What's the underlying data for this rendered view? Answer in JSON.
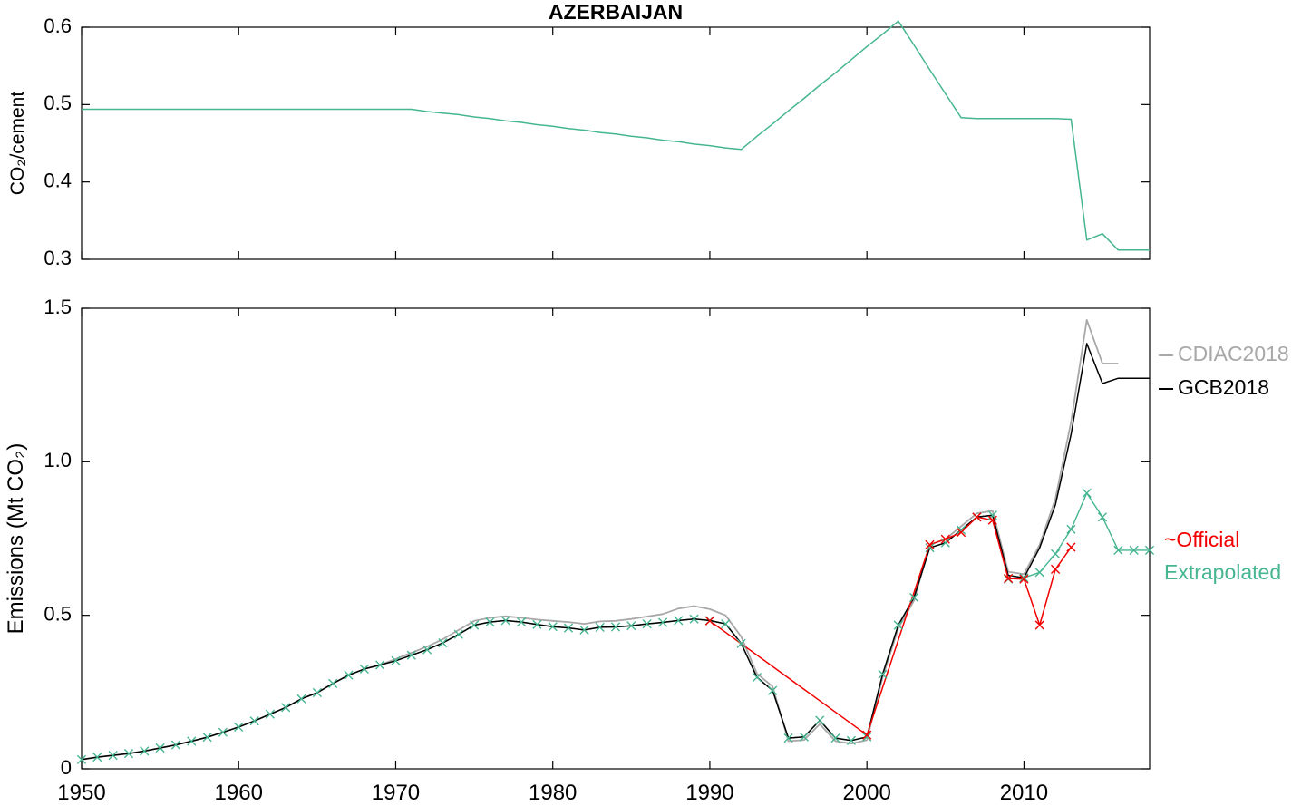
{
  "figure": {
    "title": "AZERBAIJAN"
  },
  "colors": {
    "axis": "#000000",
    "cdiac": "#a8a8a8",
    "gcb": "#000000",
    "official": "#f20000",
    "extrapolated": "#45b592"
  },
  "legend": {
    "cdiac": "CDIAC2018",
    "gcb": "GCB2018",
    "official": "~Official",
    "extrapolated": "Extrapolated"
  },
  "chart_data": [
    {
      "type": "line",
      "title": "AZERBAIJAN",
      "xlabel": "",
      "ylabel": "CO₂/cement",
      "xlim": [
        1950,
        2018
      ],
      "ylim": [
        0.3,
        0.6
      ],
      "xticks": [
        1950,
        1960,
        1970,
        1980,
        1990,
        2000,
        2010
      ],
      "xtick_labels": [
        "",
        "",
        "",
        "",
        "",
        "",
        ""
      ],
      "yticks": [
        0.3,
        0.4,
        0.5,
        0.6
      ],
      "ytick_labels": [
        "0.3",
        "0.4",
        "0.5",
        "0.6"
      ],
      "grid": false,
      "series": [
        {
          "name": "co2-per-cement-ratio",
          "color_key": "extrapolated",
          "marker": "none",
          "width": 1.5,
          "x_start": 1950,
          "values": [
            0.494,
            0.494,
            0.494,
            0.494,
            0.494,
            0.494,
            0.494,
            0.494,
            0.494,
            0.494,
            0.494,
            0.494,
            0.494,
            0.494,
            0.494,
            0.494,
            0.494,
            0.494,
            0.494,
            0.494,
            0.494,
            0.494,
            0.491,
            0.489,
            0.487,
            0.484,
            0.482,
            0.479,
            0.477,
            0.474,
            0.472,
            0.469,
            0.467,
            0.464,
            0.462,
            0.459,
            0.457,
            0.454,
            0.452,
            0.449,
            0.447,
            0.444,
            0.442,
            0.459,
            0.475,
            0.492,
            0.508,
            0.525,
            0.541,
            0.558,
            0.575,
            0.591,
            0.608,
            0.577,
            0.545,
            0.514,
            0.483,
            0.482,
            0.482,
            0.482,
            0.482,
            0.482,
            0.482,
            0.481,
            0.325,
            0.333,
            0.312,
            0.312,
            0.312
          ]
        }
      ]
    },
    {
      "type": "line",
      "title": "",
      "xlabel": "",
      "ylabel": "Emissions (Mt CO₂)",
      "xlim": [
        1950,
        2018
      ],
      "ylim": [
        0,
        1.5
      ],
      "xticks": [
        1950,
        1960,
        1970,
        1980,
        1990,
        2000,
        2010
      ],
      "xtick_labels": [
        "1950",
        "1960",
        "1970",
        "1980",
        "1990",
        "2000",
        "2010"
      ],
      "yticks": [
        0,
        0.5,
        1.0,
        1.5
      ],
      "ytick_labels": [
        "0",
        "0.5",
        "1.0",
        "1.5"
      ],
      "grid": false,
      "legend_position": "right-outside",
      "series": [
        {
          "name": "Extrapolated",
          "color_key": "extrapolated",
          "marker": "x",
          "width": 1.4,
          "x_start": 1950,
          "values": [
            0.03,
            0.038,
            0.044,
            0.05,
            0.058,
            0.068,
            0.078,
            0.09,
            0.103,
            0.119,
            0.136,
            0.156,
            0.178,
            0.2,
            0.228,
            0.248,
            0.278,
            0.305,
            0.325,
            0.338,
            0.352,
            0.37,
            0.388,
            0.41,
            0.438,
            0.468,
            0.478,
            0.483,
            0.478,
            0.47,
            0.463,
            0.459,
            0.452,
            0.461,
            0.462,
            0.466,
            0.472,
            0.477,
            0.483,
            0.488,
            0.483,
            0.472,
            0.408,
            0.298,
            0.255,
            0.1,
            0.104,
            0.158,
            0.1,
            0.092,
            0.104,
            0.308,
            0.468,
            0.558,
            0.72,
            0.736,
            0.778,
            0.82,
            0.826,
            0.618,
            0.622,
            0.64,
            0.7,
            0.78,
            0.898,
            0.82,
            0.712,
            0.712,
            0.712
          ]
        },
        {
          "name": "CDIAC2018",
          "color_key": "cdiac",
          "marker": "none",
          "width": 1.8,
          "x_start": 1950,
          "values": [
            0.03,
            0.038,
            0.044,
            0.05,
            0.058,
            0.068,
            0.078,
            0.09,
            0.103,
            0.119,
            0.136,
            0.156,
            0.178,
            0.2,
            0.228,
            0.248,
            0.278,
            0.305,
            0.325,
            0.338,
            0.358,
            0.378,
            0.398,
            0.422,
            0.452,
            0.482,
            0.492,
            0.497,
            0.492,
            0.486,
            0.482,
            0.478,
            0.472,
            0.48,
            0.482,
            0.488,
            0.496,
            0.504,
            0.522,
            0.53,
            0.52,
            0.5,
            0.43,
            0.31,
            0.268,
            0.09,
            0.094,
            0.146,
            0.09,
            0.082,
            0.094,
            0.298,
            0.458,
            0.548,
            0.73,
            0.748,
            0.79,
            0.832,
            0.84,
            0.642,
            0.634,
            0.73,
            0.88,
            1.13,
            1.462,
            1.32,
            1.32
          ]
        },
        {
          "name": "GCB2018",
          "color_key": "gcb",
          "marker": "none",
          "width": 1.5,
          "x_start": 1950,
          "values": [
            0.03,
            0.038,
            0.044,
            0.05,
            0.058,
            0.068,
            0.078,
            0.09,
            0.103,
            0.119,
            0.136,
            0.156,
            0.178,
            0.2,
            0.228,
            0.248,
            0.278,
            0.305,
            0.325,
            0.338,
            0.352,
            0.37,
            0.388,
            0.41,
            0.438,
            0.468,
            0.478,
            0.483,
            0.478,
            0.47,
            0.463,
            0.459,
            0.452,
            0.461,
            0.462,
            0.466,
            0.472,
            0.477,
            0.483,
            0.488,
            0.483,
            0.472,
            0.408,
            0.298,
            0.255,
            0.1,
            0.104,
            0.158,
            0.1,
            0.092,
            0.104,
            0.308,
            0.468,
            0.558,
            0.72,
            0.736,
            0.778,
            0.82,
            0.826,
            0.63,
            0.622,
            0.72,
            0.86,
            1.09,
            1.385,
            1.255,
            1.272,
            1.272,
            1.272
          ]
        },
        {
          "name": "Official",
          "color_key": "official",
          "marker": "x",
          "width": 1.5,
          "points": [
            [
              1990,
              0.482
            ],
            [
              2000,
              0.11
            ],
            [
              2004,
              0.73
            ],
            [
              2005,
              0.748
            ],
            [
              2006,
              0.77
            ],
            [
              2007,
              0.82
            ],
            [
              2008,
              0.81
            ],
            [
              2009,
              0.62
            ],
            [
              2010,
              0.618
            ],
            [
              2011,
              0.468
            ],
            [
              2012,
              0.65
            ],
            [
              2013,
              0.722
            ]
          ]
        }
      ]
    }
  ]
}
